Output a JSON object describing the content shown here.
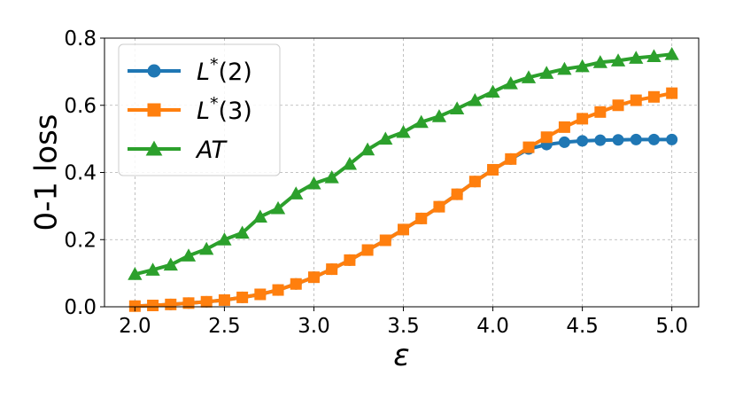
{
  "chart_data": {
    "type": "line",
    "xlabel": "ε",
    "ylabel": "0-1 loss",
    "xlim": [
      1.83,
      5.15
    ],
    "ylim": [
      0.0,
      0.8
    ],
    "xticks": [
      "2.0",
      "2.5",
      "3.0",
      "3.5",
      "4.0",
      "4.5",
      "5.0"
    ],
    "yticks": [
      "0.0",
      "0.2",
      "0.4",
      "0.6",
      "0.8"
    ],
    "grid": true,
    "legend_position": "top-left",
    "x": [
      2.0,
      2.1,
      2.2,
      2.3,
      2.4,
      2.5,
      2.6,
      2.7,
      2.8,
      2.9,
      3.0,
      3.1,
      3.2,
      3.3,
      3.4,
      3.5,
      3.6,
      3.7,
      3.8,
      3.9,
      4.0,
      4.1,
      4.2,
      4.3,
      4.4,
      4.5,
      4.6,
      4.7,
      4.8,
      4.9,
      5.0
    ],
    "series": [
      {
        "name_main": "L",
        "name_sup": "*",
        "name_rest": "(2)",
        "color": "#1f77b4",
        "marker": "circle",
        "values": [
          0.002,
          0.004,
          0.007,
          0.011,
          0.015,
          0.02,
          0.028,
          0.037,
          0.05,
          0.068,
          0.088,
          0.112,
          0.139,
          0.169,
          0.198,
          0.23,
          0.263,
          0.298,
          0.335,
          0.373,
          0.408,
          0.44,
          0.47,
          0.483,
          0.49,
          0.494,
          0.496,
          0.497,
          0.498,
          0.498,
          0.498
        ]
      },
      {
        "name_main": "L",
        "name_sup": "*",
        "name_rest": "(3)",
        "color": "#ff7f0e",
        "marker": "square",
        "values": [
          0.002,
          0.004,
          0.007,
          0.011,
          0.015,
          0.02,
          0.028,
          0.037,
          0.05,
          0.068,
          0.088,
          0.112,
          0.139,
          0.169,
          0.198,
          0.23,
          0.263,
          0.298,
          0.335,
          0.373,
          0.408,
          0.44,
          0.475,
          0.505,
          0.535,
          0.56,
          0.58,
          0.6,
          0.615,
          0.625,
          0.636
        ]
      },
      {
        "name_main": "AT",
        "name_sup": "",
        "name_rest": "",
        "color": "#2ca02c",
        "marker": "triangle",
        "values": [
          0.097,
          0.11,
          0.125,
          0.152,
          0.172,
          0.2,
          0.22,
          0.268,
          0.293,
          0.337,
          0.367,
          0.385,
          0.425,
          0.468,
          0.5,
          0.52,
          0.55,
          0.567,
          0.59,
          0.615,
          0.64,
          0.665,
          0.683,
          0.696,
          0.708,
          0.716,
          0.728,
          0.733,
          0.741,
          0.746,
          0.752
        ]
      }
    ]
  }
}
